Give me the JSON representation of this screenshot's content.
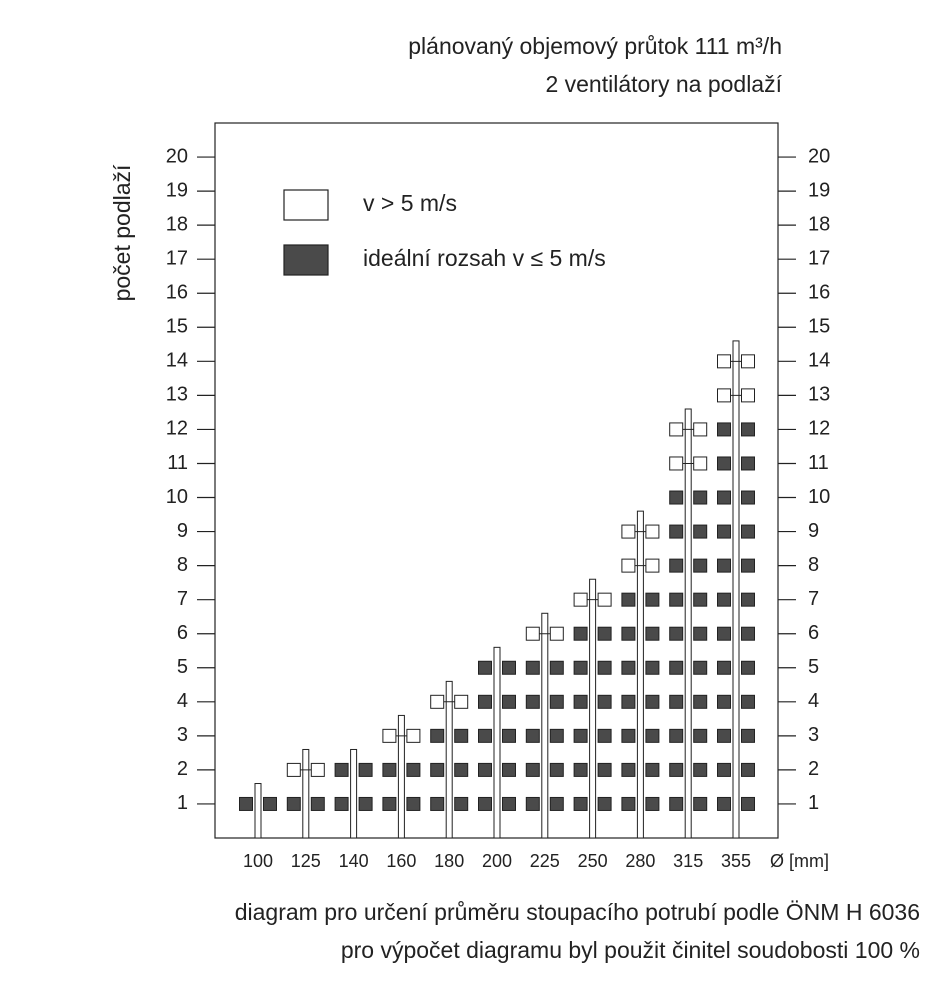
{
  "chart_data": {
    "type": "stacked-squares",
    "title": "plánovaný objemový průtok 111 m³/h",
    "subtitle": "2 ventilátory na podlaží",
    "y_label": "počet podlaží",
    "x_unit": "Ø [mm]",
    "notes": [
      "diagram pro určení průměru stoupacího potrubí podle ÖNM H 6036",
      "pro výpočet diagramu byl použit činitel soudobosti 100 %"
    ],
    "categories": [
      "100",
      "125",
      "140",
      "160",
      "180",
      "200",
      "225",
      "250",
      "280",
      "315",
      "355"
    ],
    "series": [
      {
        "name": "ideální rozsah v ≤ 5 m/s",
        "color": "#4a4a4a",
        "values": [
          1,
          1,
          2,
          2,
          3,
          5,
          5,
          6,
          7,
          10,
          12
        ]
      },
      {
        "name": "v > 5 m/s",
        "color": "#ffffff",
        "values": [
          0,
          1,
          0,
          1,
          1,
          0,
          1,
          1,
          2,
          2,
          2
        ]
      }
    ],
    "ylim": [
      0,
      21
    ],
    "yticks": [
      1,
      2,
      3,
      4,
      5,
      6,
      7,
      8,
      9,
      10,
      11,
      12,
      13,
      14,
      15,
      16,
      17,
      18,
      19,
      20
    ]
  }
}
